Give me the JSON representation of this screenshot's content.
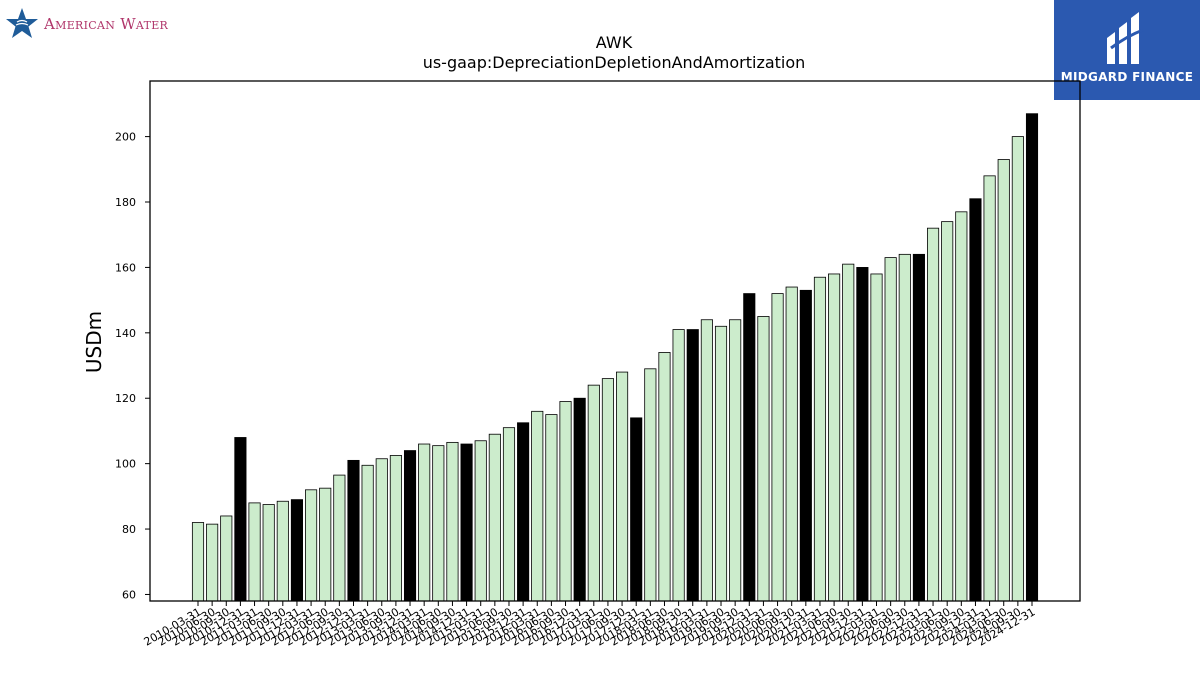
{
  "branding": {
    "left_logo_text": "American Water",
    "left_logo_icon": "star-water-icon",
    "right_logo_text": "MIDGARD FINANCE",
    "right_logo_icon": "midgard-mark-icon",
    "right_logo_color": "#2b59b0"
  },
  "chart_data": {
    "type": "bar",
    "title": "AWK",
    "subtitle": "us-gaap:DepreciationDepletionAndAmortization",
    "xlabel": "",
    "ylabel": "USDm",
    "ylim": [
      58,
      217
    ],
    "yticks": [
      60,
      80,
      100,
      120,
      140,
      160,
      180,
      200
    ],
    "grid": false,
    "colors": {
      "quarter": "#cceccc",
      "annual": "#000000",
      "edge": "#000000"
    },
    "categories": [
      "2010-03-31",
      "2010-06-30",
      "2010-09-30",
      "2010-12-31",
      "2011-03-31",
      "2011-06-30",
      "2011-09-30",
      "2011-12-31",
      "2012-03-31",
      "2012-06-30",
      "2012-09-30",
      "2012-12-31",
      "2013-03-31",
      "2013-06-30",
      "2013-09-30",
      "2013-12-31",
      "2014-03-31",
      "2014-06-30",
      "2014-09-30",
      "2014-12-31",
      "2015-03-31",
      "2015-06-30",
      "2015-09-30",
      "2015-12-31",
      "2016-03-31",
      "2016-06-30",
      "2016-09-30",
      "2016-12-31",
      "2017-03-31",
      "2017-06-30",
      "2017-09-30",
      "2017-12-31",
      "2018-03-31",
      "2018-06-30",
      "2018-09-30",
      "2018-12-31",
      "2019-03-31",
      "2019-06-30",
      "2019-09-30",
      "2019-12-31",
      "2020-03-31",
      "2020-06-30",
      "2020-09-30",
      "2020-12-31",
      "2021-03-31",
      "2021-06-30",
      "2021-09-30",
      "2021-12-31",
      "2022-03-31",
      "2022-06-30",
      "2022-09-30",
      "2022-12-31",
      "2023-03-31",
      "2023-06-30",
      "2023-09-30",
      "2023-12-31",
      "2024-03-31",
      "2024-06-30",
      "2024-09-30",
      "2024-12-31"
    ],
    "visible_tick_labels": [
      "2010-03-31",
      "2010-06-30",
      "2010-09-30",
      "2010-12-31",
      "2011-03-31",
      "2011-06-30",
      "2011-09-30",
      "2011-12-31",
      "2012-03-31",
      "2012-06-30",
      "2012-09-30",
      "2012-12-31",
      "2013-03-31",
      "2013-06-30",
      "2013-09-30",
      "2013-12-31",
      "2014-03-31",
      "2014-06-30",
      "2014-09-30",
      "2014-12-31",
      "2015-03-31",
      "2015-06-30",
      "2015-09-30",
      "2015-12-31",
      "2016-03-31",
      "2016-06-30",
      "2016-09-30",
      "2016-12-31",
      "2017-03-31",
      "2017-06-30",
      "2017-09-30",
      "2017-12-31",
      "2018-03-31",
      "2018-06-30",
      "2018-09-30",
      "2018-12-31",
      "2019-03-31",
      "2019-06-30",
      "2019-09-30",
      "2019-12-31",
      "2020-03-31",
      "2020-06-30",
      "2020-09-30",
      "2020-12-31",
      "2021-03-31",
      "2021-06-30",
      "2021-09-30",
      "2021-12-31",
      "2022-03-31",
      "2022-06-30",
      "2022-09-30",
      "2022-12-31",
      "2023-03-31",
      "2023-06-30",
      "2023-09-30",
      "2023-12-31",
      "2024-03-31",
      "2024-06-30",
      "2024-09-30",
      "2024-12-31"
    ],
    "values": [
      82,
      81.5,
      84,
      108,
      88,
      87.5,
      88.5,
      89,
      92,
      92.5,
      96.5,
      101,
      99.5,
      101.5,
      102.5,
      104,
      106,
      105.5,
      106.5,
      106,
      107,
      109,
      111,
      112.5,
      116,
      115,
      119,
      120,
      124,
      126,
      128,
      114,
      129,
      134,
      141,
      141,
      144,
      142,
      144,
      152,
      145,
      152,
      154,
      153,
      157,
      158,
      161,
      160,
      158,
      163,
      164,
      164,
      172,
      174,
      177,
      181,
      188,
      193,
      200,
      207
    ],
    "annual_flags": [
      false,
      false,
      false,
      true,
      false,
      false,
      false,
      true,
      false,
      false,
      false,
      true,
      false,
      false,
      false,
      true,
      false,
      false,
      false,
      true,
      false,
      false,
      false,
      true,
      false,
      false,
      false,
      true,
      false,
      false,
      false,
      true,
      false,
      false,
      false,
      true,
      false,
      false,
      false,
      true,
      false,
      false,
      false,
      true,
      false,
      false,
      false,
      true,
      false,
      false,
      false,
      true,
      false,
      false,
      false,
      true,
      false,
      false,
      false,
      true
    ]
  }
}
